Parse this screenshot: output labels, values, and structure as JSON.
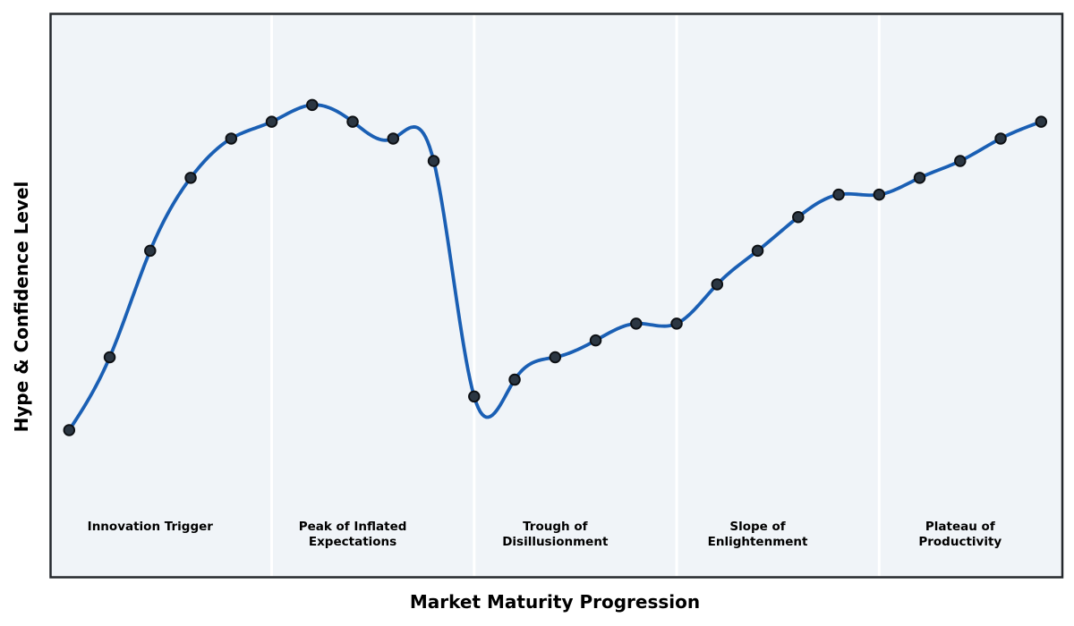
{
  "chart_data": {
    "type": "line",
    "title": "",
    "xlabel": "Market Maturity Progression",
    "ylabel": "Hype & Confidence Level",
    "x": [
      1,
      2,
      3,
      4,
      5,
      6,
      7,
      8,
      9,
      10,
      11,
      12,
      13,
      14,
      15,
      16,
      17,
      18,
      19,
      20,
      21,
      22,
      23,
      24,
      25
    ],
    "values": [
      26,
      39,
      58,
      71,
      78,
      81,
      84,
      81,
      78,
      74,
      32,
      35,
      39,
      42,
      45,
      45,
      52,
      58,
      64,
      68,
      68,
      71,
      74,
      78,
      81
    ],
    "series_name": "Hype curve",
    "ylim": [
      0,
      100
    ],
    "xlim": [
      0.5,
      25.5
    ],
    "grid": false,
    "legend": "none",
    "axis_ticks": "none",
    "smoothing": "cubic-spline",
    "marker": "circle",
    "phases": [
      {
        "lines": [
          "Innovation Trigger"
        ],
        "label_x": 3,
        "boundary_end_x": 6
      },
      {
        "lines": [
          "Peak of Inflated",
          "Expectations"
        ],
        "label_x": 8,
        "boundary_end_x": 11
      },
      {
        "lines": [
          "Trough of",
          "Disillusionment"
        ],
        "label_x": 13,
        "boundary_end_x": 16
      },
      {
        "lines": [
          "Slope of",
          "Enlightenment"
        ],
        "label_x": 18,
        "boundary_end_x": 21
      },
      {
        "lines": [
          "Plateau of",
          "Productivity"
        ],
        "label_x": 23,
        "boundary_end_x": null
      }
    ],
    "colors": {
      "line": "#1a5fb4",
      "marker_fill": "#2b3642",
      "marker_edge": "#0c0f13",
      "band": "#f0f4f8",
      "separator": "#ffffff",
      "frame": "#24282d",
      "text": "#000000",
      "figure_background": "#ffffff"
    }
  }
}
